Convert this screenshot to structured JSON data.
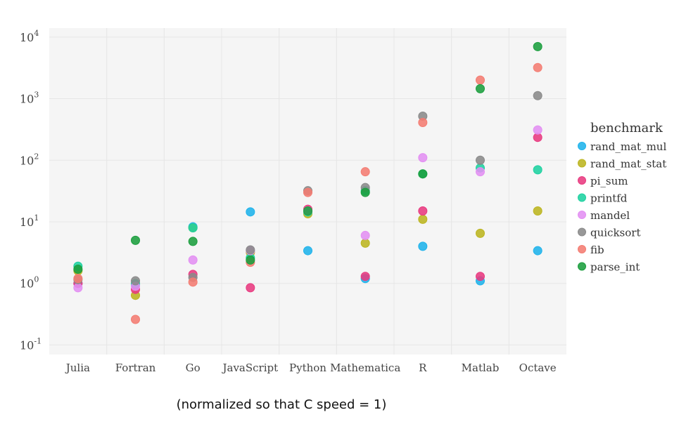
{
  "caption": "(normalized so that C speed = 1)",
  "chart_data": {
    "type": "scatter",
    "categories": [
      "Julia",
      "Fortran",
      "Go",
      "JavaScript",
      "Python",
      "Mathematica",
      "R",
      "Matlab",
      "Octave"
    ],
    "y_scale": "log",
    "ylim": [
      0.07,
      14000
    ],
    "y_ticks": [
      {
        "value": 0.1,
        "base": "10",
        "exp": "-1"
      },
      {
        "value": 1,
        "base": "10",
        "exp": "0"
      },
      {
        "value": 10,
        "base": "10",
        "exp": "1"
      },
      {
        "value": 100,
        "base": "10",
        "exp": "2"
      },
      {
        "value": 1000,
        "base": "10",
        "exp": "3"
      },
      {
        "value": 10000,
        "base": "10",
        "exp": "4"
      }
    ],
    "grid": true,
    "legend_title": "benchmark",
    "legend_position": "right",
    "series": [
      {
        "name": "rand_mat_mul",
        "color": "#1fb3eb",
        "values": [
          1.0,
          0.95,
          8.3,
          14.5,
          3.4,
          1.2,
          4.0,
          1.1,
          3.4
        ]
      },
      {
        "name": "rand_mat_stat",
        "color": "#bcb520",
        "values": [
          1.6,
          0.64,
          8.0,
          3.2,
          13.5,
          4.5,
          11.0,
          6.5,
          15.0
        ]
      },
      {
        "name": "pi_sum",
        "color": "#e83a80",
        "values": [
          1.0,
          0.8,
          1.4,
          0.85,
          16.0,
          1.3,
          15.0,
          1.3,
          235.0
        ]
      },
      {
        "name": "printfd",
        "color": "#1ed1a1",
        "values": [
          1.9,
          1.0,
          8.0,
          2.6,
          14.5,
          32.0,
          60.0,
          75.0,
          70.0
        ]
      },
      {
        "name": "mandel",
        "color": "#e38ff2",
        "values": [
          0.85,
          0.9,
          2.4,
          3.4,
          15.0,
          6.0,
          110.0,
          65.0,
          310.0
        ]
      },
      {
        "name": "quicksort",
        "color": "#8a8a8a",
        "values": [
          1.15,
          1.1,
          1.25,
          3.5,
          32.0,
          36.0,
          520.0,
          100.0,
          1120.0
        ]
      },
      {
        "name": "fib",
        "color": "#f47c72",
        "values": [
          1.2,
          0.26,
          1.05,
          2.2,
          30.0,
          65.0,
          410.0,
          2000.0,
          3200.0
        ]
      },
      {
        "name": "parse_int",
        "color": "#1b9e3e",
        "values": [
          1.7,
          5.0,
          4.8,
          2.4,
          15.0,
          30.0,
          60.0,
          1450.0,
          7000.0
        ]
      }
    ]
  }
}
